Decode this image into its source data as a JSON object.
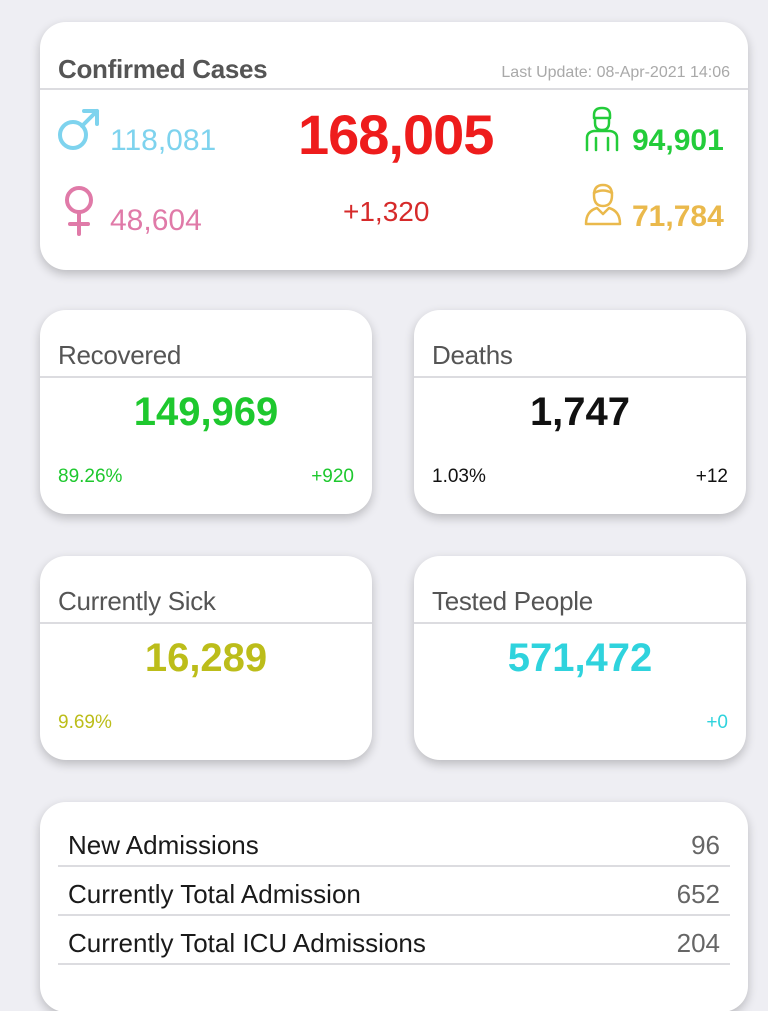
{
  "confirmed": {
    "title": "Confirmed Cases",
    "last_update": "Last Update: 08-Apr-2021 14:06",
    "total": "168,005",
    "new": "+1,320",
    "male": "118,081",
    "female": "48,604",
    "workers": "94,901",
    "citizens": "71,784",
    "icons": {
      "male": "male-symbol-icon",
      "female": "female-symbol-icon",
      "workers": "worker-person-icon",
      "citizens": "person-icon"
    }
  },
  "recovered": {
    "title": "Recovered",
    "value": "149,969",
    "percent": "89.26%",
    "change": "+920"
  },
  "deaths": {
    "title": "Deaths",
    "value": "1,747",
    "percent": "1.03%",
    "change": "+12"
  },
  "currently_sick": {
    "title": "Currently Sick",
    "value": "16,289",
    "percent": "9.69%"
  },
  "tested": {
    "title": "Tested People",
    "value": "571,472",
    "change": "+0"
  },
  "admissions": [
    {
      "label": "New Admissions",
      "value": "96"
    },
    {
      "label": "Currently Total Admission",
      "value": "652"
    },
    {
      "label": "Currently Total ICU Admissions",
      "value": "204"
    }
  ],
  "colors": {
    "male": "#7ed3ee",
    "female": "#e07aa8",
    "total": "#ee1c1c",
    "new": "#d62a2a",
    "workers": "#23cc3a",
    "citizens": "#eab94c",
    "recovered": "#1ec82e",
    "deaths": "#111111",
    "sick": "#bcbd1a",
    "tested": "#2fd3dd"
  }
}
